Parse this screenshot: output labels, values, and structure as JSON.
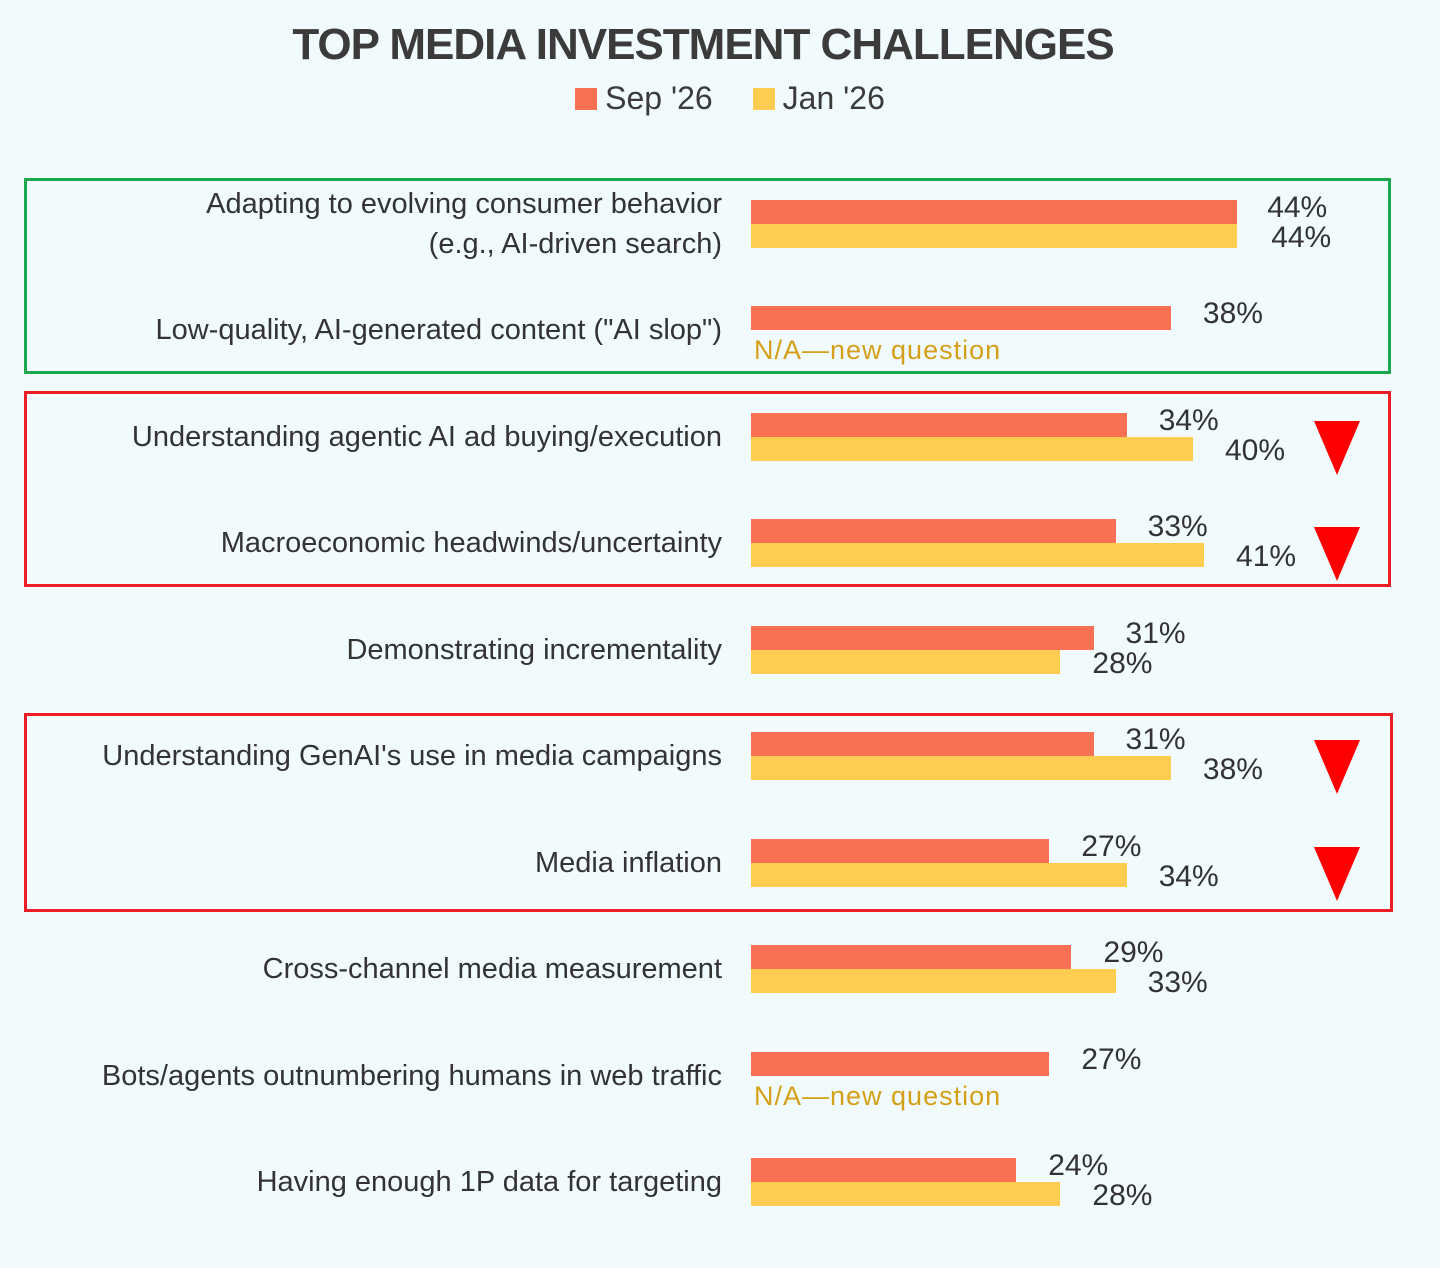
{
  "chart_data": {
    "type": "bar",
    "orientation": "horizontal",
    "title": "TOP MEDIA INVESTMENT CHALLENGES",
    "legend_position": "top",
    "xlim": [
      0,
      60
    ],
    "categories": [
      "Adapting to evolving consumer behavior\n(e.g., AI-driven search)",
      "Low-quality, AI-generated content (\"AI slop\")",
      "Understanding agentic AI ad buying/execution",
      "Macroeconomic headwinds/uncertainty",
      "Demonstrating incrementality",
      "Understanding GenAI's use in media campaigns",
      "Media inflation",
      "Cross-channel media measurement",
      "Bots/agents outnumbering humans in web traffic",
      "Having enough 1P data for targeting"
    ],
    "series": [
      {
        "name": "Sep '26",
        "color": "#f97152",
        "values": [
          44,
          38,
          34,
          33,
          31,
          31,
          27,
          29,
          27,
          24
        ],
        "labels": [
          "44%",
          "38%",
          "34%",
          "33%",
          "31%",
          "31%",
          "27%",
          "29%",
          "27%",
          "24%"
        ]
      },
      {
        "name": "Jan '26",
        "color": "#ffcc52",
        "values": [
          44,
          null,
          40,
          41,
          28,
          38,
          34,
          33,
          null,
          28
        ],
        "labels": [
          "44%",
          "N/A—new question",
          "40%",
          "41%",
          "28%",
          "38%",
          "34%",
          "33%",
          "N/A—new question",
          "28%"
        ]
      }
    ],
    "declines": [
      2,
      3,
      5,
      6
    ],
    "highlight_groups": [
      {
        "categories": [
          0,
          1
        ],
        "color": "#1aa750"
      },
      {
        "categories": [
          2,
          3
        ],
        "color": "#ee1c25"
      },
      {
        "categories": [
          5,
          6
        ],
        "color": "#ee1c25"
      }
    ],
    "decline_icon": "down-triangle-icon",
    "decline_color": "#ff0000"
  }
}
